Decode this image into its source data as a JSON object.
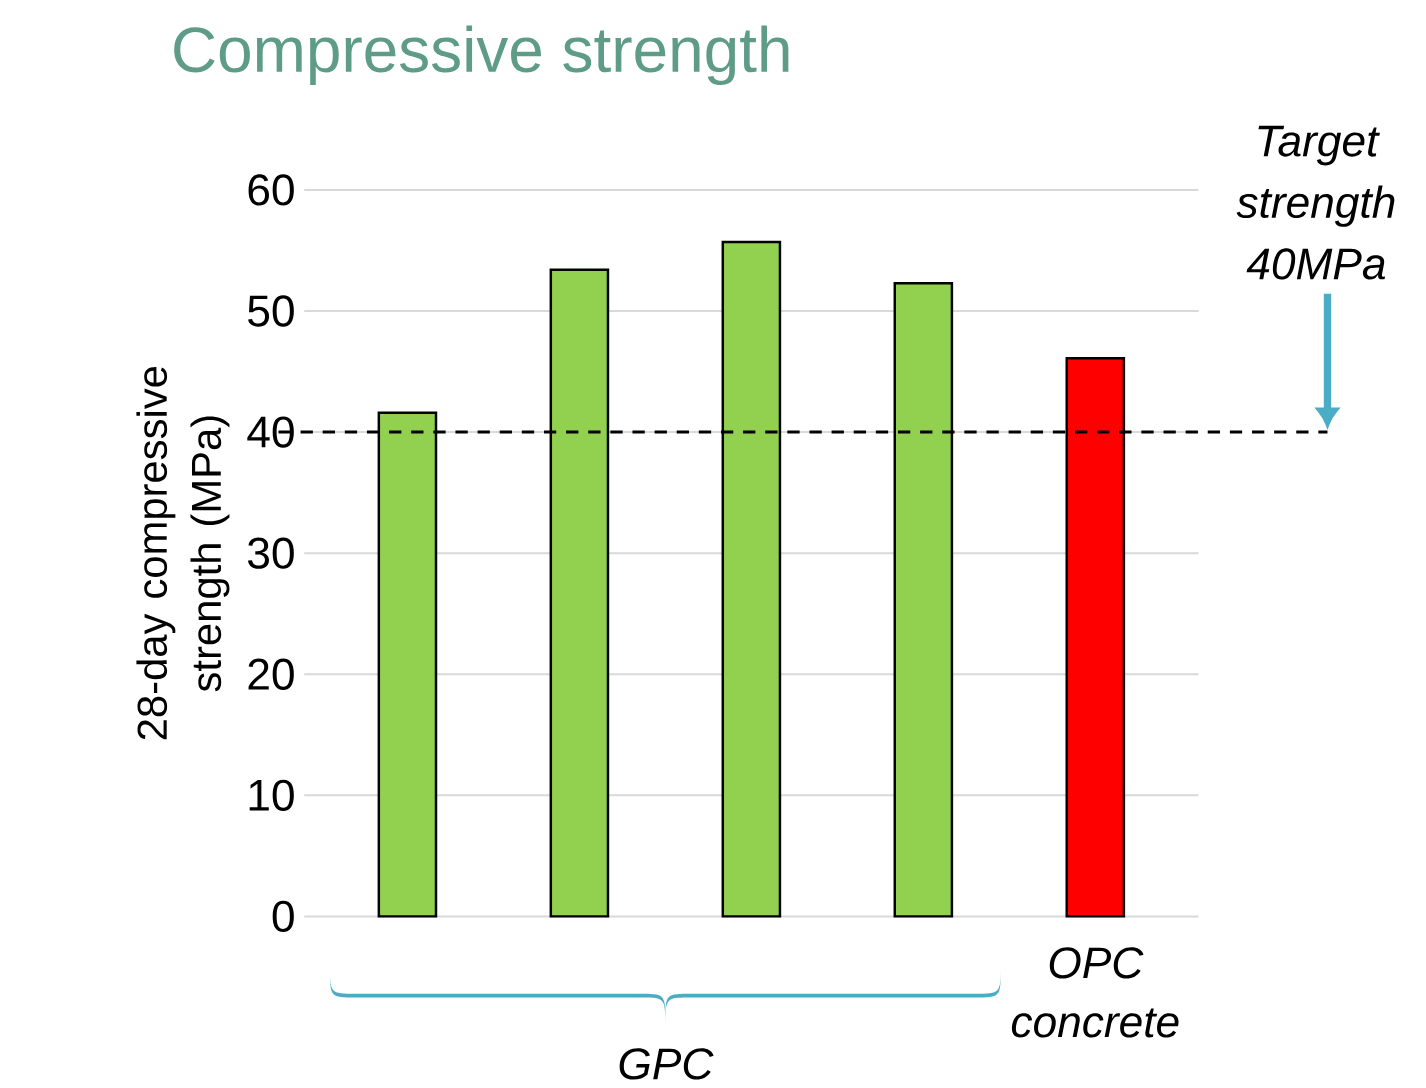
{
  "chart_data": {
    "type": "bar",
    "title": "Compressive strength",
    "ylabel": "28-day compressive strength (MPa)",
    "categories": [
      null,
      null,
      null,
      null,
      "OPC concrete"
    ],
    "values": [
      41.6,
      53.4,
      55.7,
      52.3,
      46.1
    ],
    "colors": [
      "#92d050",
      "#92d050",
      "#92d050",
      "#92d050",
      "#ff0000"
    ],
    "ylim": [
      0,
      60
    ],
    "yticks": [
      0,
      10,
      20,
      30,
      40,
      50,
      60
    ],
    "grid": "y",
    "ref_lines": [
      {
        "axis": "y",
        "value": 40,
        "label": "Target strength 40MPa",
        "color": "#000000",
        "line_style": "dashed"
      }
    ],
    "annotations": [
      "GPC"
    ]
  }
}
